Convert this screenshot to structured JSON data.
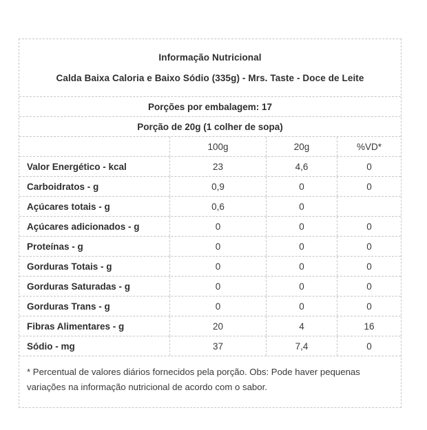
{
  "colors": {
    "border": "#c6c6c6",
    "text": "#2e2e2e",
    "background": "#ffffff"
  },
  "table": {
    "title": "Informação Nutricional",
    "subtitle": "Calda Baixa Caloria e Baixo Sódio (335g) - Mrs. Taste - Doce de Leite",
    "servings_line": "Porções por embalagem: 17",
    "portion_line": "Porção de 20g (1 colher de sopa)",
    "columns": [
      "100g",
      "20g",
      "%VD*"
    ],
    "rows": [
      {
        "label": "Valor Energético - kcal",
        "v100": "23",
        "v20": "4,6",
        "vd": "0"
      },
      {
        "label": "Carboidratos - g",
        "v100": "0,9",
        "v20": "0",
        "vd": "0"
      },
      {
        "label": "Açúcares totais - g",
        "v100": "0,6",
        "v20": "0",
        "vd": ""
      },
      {
        "label": "Açúcares adicionados - g",
        "v100": "0",
        "v20": "0",
        "vd": "0"
      },
      {
        "label": "Proteínas - g",
        "v100": "0",
        "v20": "0",
        "vd": "0"
      },
      {
        "label": "Gorduras Totais - g",
        "v100": "0",
        "v20": "0",
        "vd": "0"
      },
      {
        "label": "Gorduras Saturadas - g",
        "v100": "0",
        "v20": "0",
        "vd": "0"
      },
      {
        "label": "Gorduras Trans - g",
        "v100": "0",
        "v20": "0",
        "vd": "0"
      },
      {
        "label": "Fibras Alimentares - g",
        "v100": "20",
        "v20": "4",
        "vd": "16"
      },
      {
        "label": "Sódio - mg",
        "v100": "37",
        "v20": "7,4",
        "vd": "0"
      }
    ],
    "footnote": "* Percentual de valores diários fornecidos pela porção. Obs: Pode haver pequenas variações na informação nutricional de acordo com o sabor."
  }
}
